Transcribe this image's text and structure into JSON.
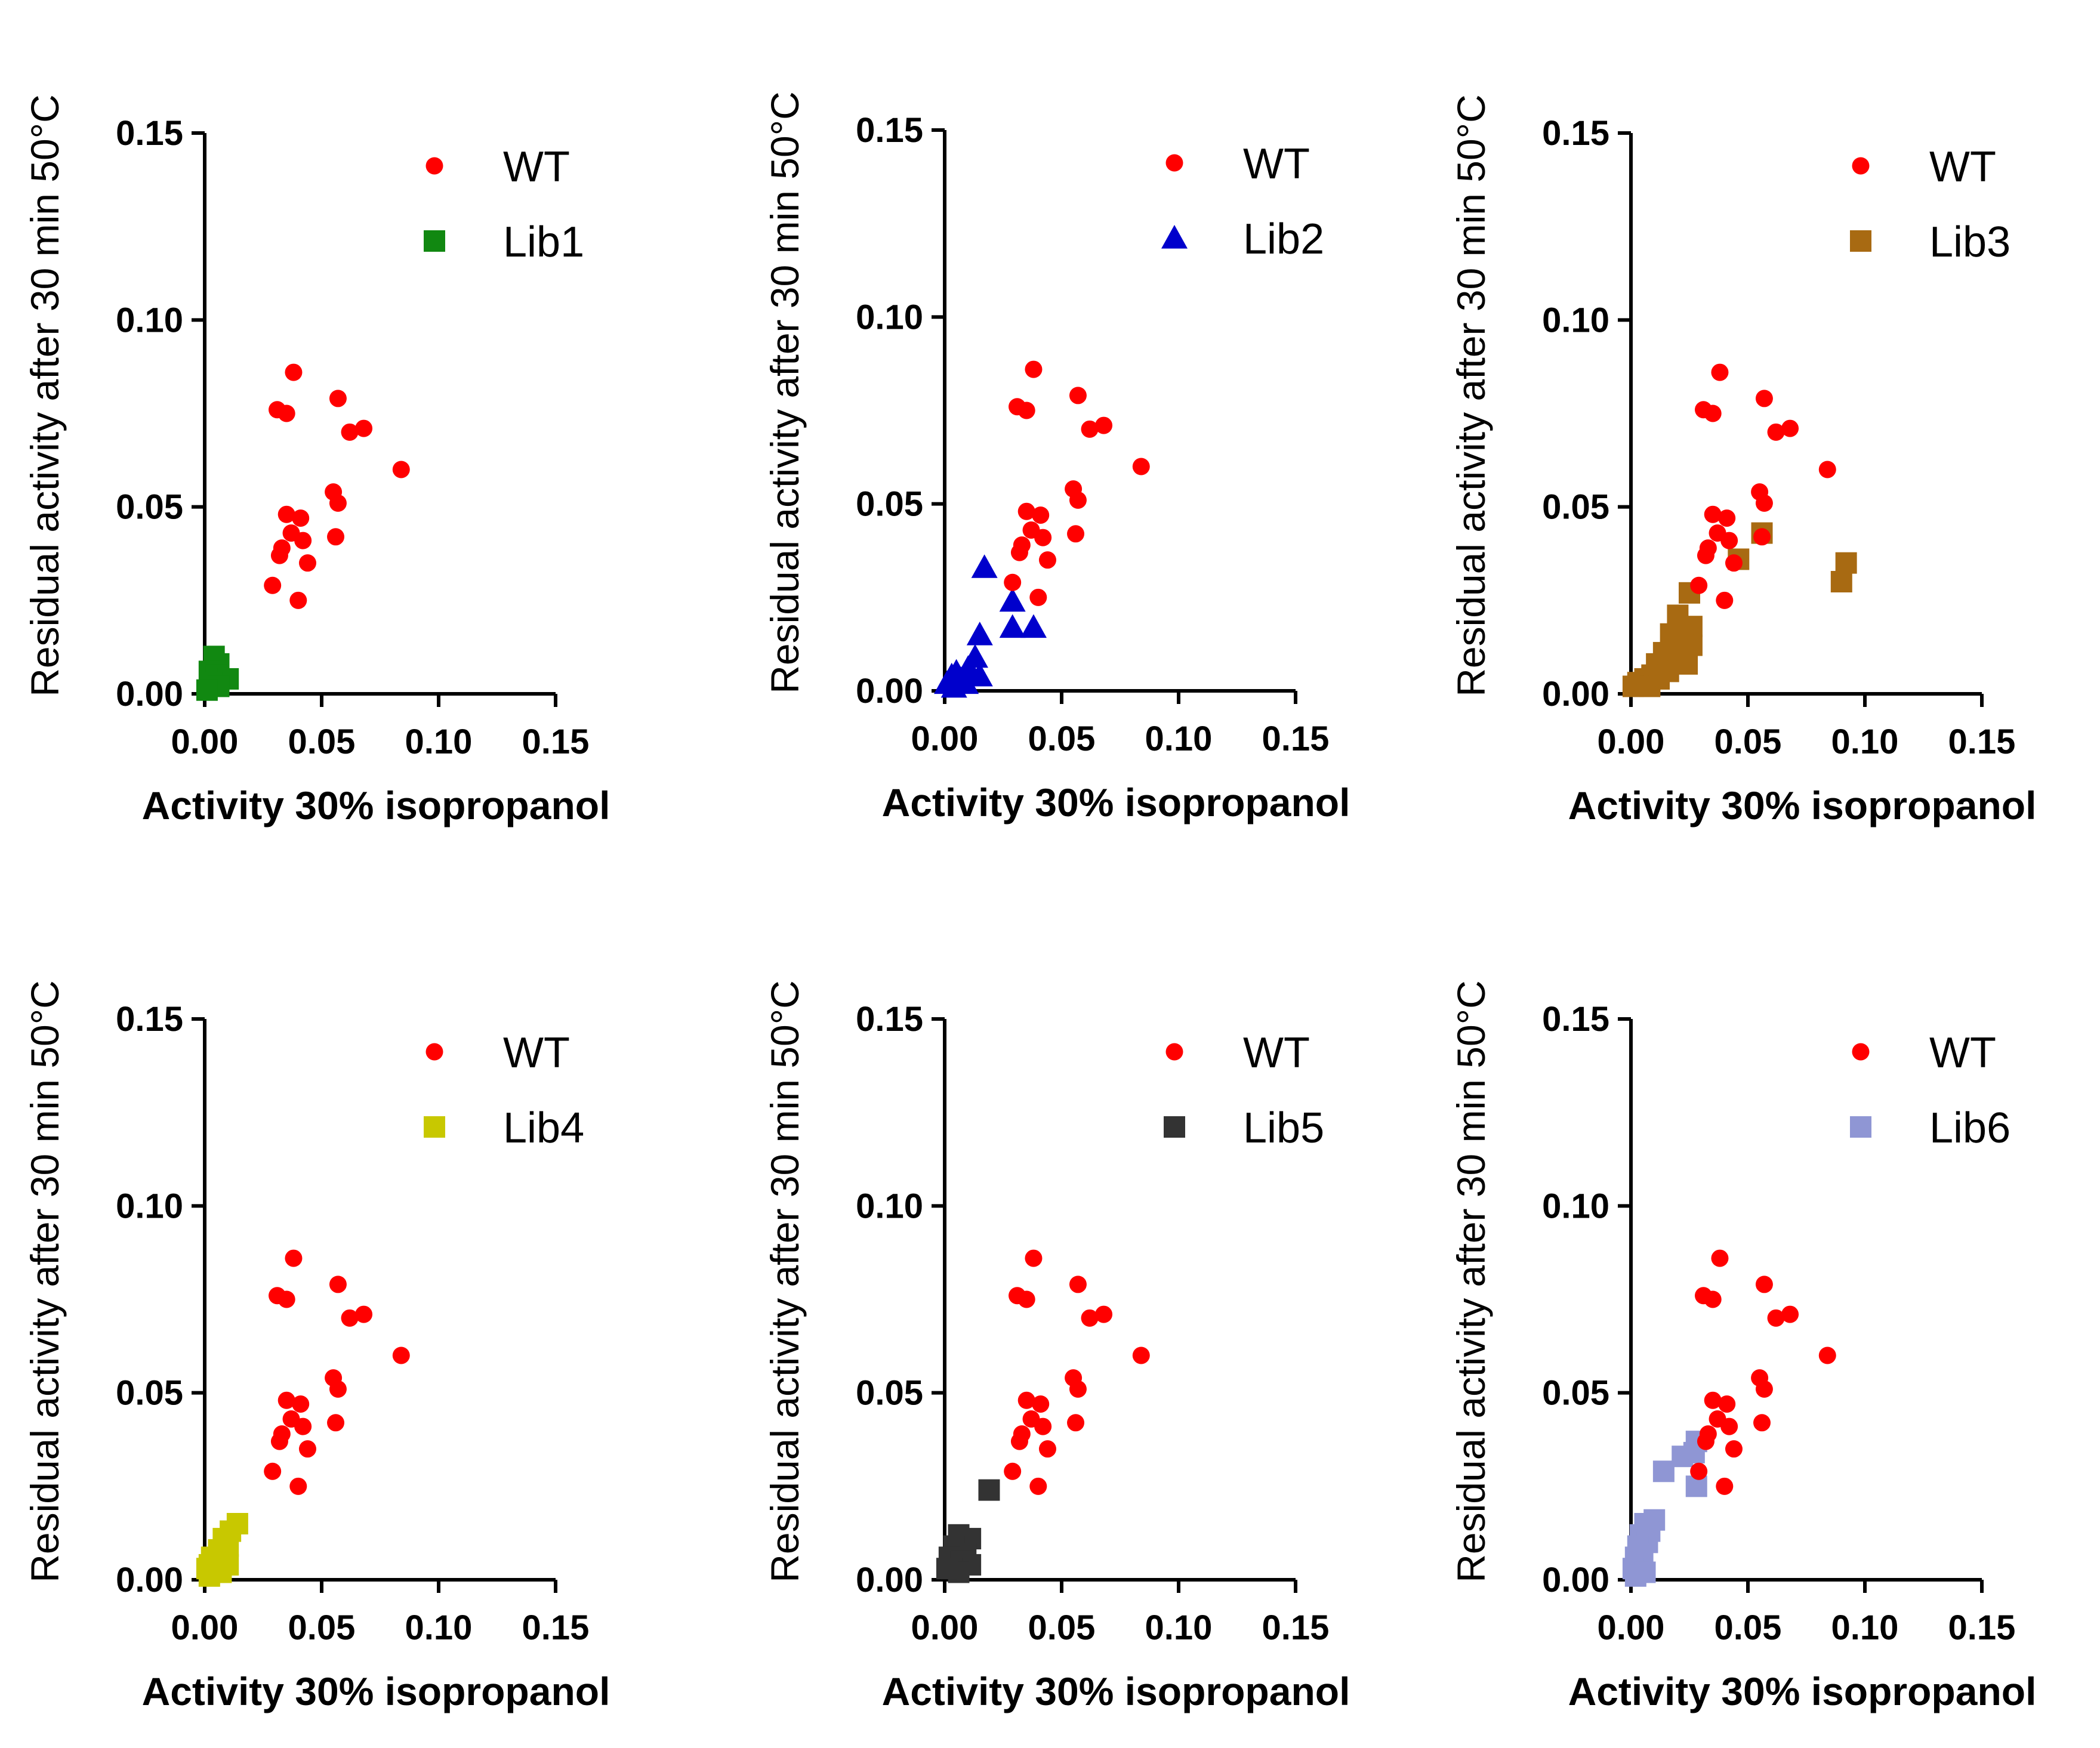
{
  "chart_data": [
    {
      "type": "scatter",
      "xlabel": "Activity 30% isopropanol",
      "ylabel": "Residual activity after 30 min 50°C",
      "xlim": [
        0,
        0.15
      ],
      "ylim": [
        0,
        0.15
      ],
      "xticks": [
        "0.00",
        "0.05",
        "0.10",
        "0.15"
      ],
      "yticks": [
        "0.00",
        "0.05",
        "0.10",
        "0.15"
      ],
      "legend_position": "top-right",
      "series": [
        {
          "name": "WT",
          "marker": "circle",
          "color": "#ff0000",
          "points": [
            [
              0.038,
              0.086
            ],
            [
              0.031,
              0.076
            ],
            [
              0.035,
              0.075
            ],
            [
              0.057,
              0.079
            ],
            [
              0.062,
              0.07
            ],
            [
              0.068,
              0.071
            ],
            [
              0.084,
              0.06
            ],
            [
              0.055,
              0.054
            ],
            [
              0.057,
              0.051
            ],
            [
              0.035,
              0.048
            ],
            [
              0.041,
              0.047
            ],
            [
              0.037,
              0.043
            ],
            [
              0.042,
              0.041
            ],
            [
              0.056,
              0.042
            ],
            [
              0.033,
              0.039
            ],
            [
              0.032,
              0.037
            ],
            [
              0.044,
              0.035
            ],
            [
              0.029,
              0.029
            ],
            [
              0.04,
              0.025
            ]
          ]
        },
        {
          "name": "Lib1",
          "marker": "square",
          "color": "#118811",
          "points": [
            [
              0.004,
              0.01
            ],
            [
              0.006,
              0.008
            ],
            [
              0.002,
              0.006
            ],
            [
              0.005,
              0.005
            ],
            [
              0.01,
              0.004
            ],
            [
              0.003,
              0.003
            ],
            [
              0.006,
              0.002
            ],
            [
              0.001,
              0.001
            ]
          ]
        }
      ]
    },
    {
      "type": "scatter",
      "xlabel": "Activity 30% isopropanol",
      "ylabel": "Residual activity after 30 min 50°C",
      "xlim": [
        0,
        0.15
      ],
      "ylim": [
        0,
        0.15
      ],
      "xticks": [
        "0.00",
        "0.05",
        "0.10",
        "0.15"
      ],
      "yticks": [
        "0.00",
        "0.05",
        "0.10",
        "0.15"
      ],
      "legend_position": "top-right",
      "series": [
        {
          "name": "WT",
          "marker": "circle",
          "color": "#ff0000",
          "points": [
            [
              0.038,
              0.086
            ],
            [
              0.031,
              0.076
            ],
            [
              0.035,
              0.075
            ],
            [
              0.057,
              0.079
            ],
            [
              0.062,
              0.07
            ],
            [
              0.068,
              0.071
            ],
            [
              0.084,
              0.06
            ],
            [
              0.055,
              0.054
            ],
            [
              0.057,
              0.051
            ],
            [
              0.035,
              0.048
            ],
            [
              0.041,
              0.047
            ],
            [
              0.037,
              0.043
            ],
            [
              0.042,
              0.041
            ],
            [
              0.056,
              0.042
            ],
            [
              0.033,
              0.039
            ],
            [
              0.032,
              0.037
            ],
            [
              0.044,
              0.035
            ],
            [
              0.029,
              0.029
            ],
            [
              0.04,
              0.025
            ]
          ]
        },
        {
          "name": "Lib2",
          "marker": "triangle",
          "color": "#0000cc",
          "points": [
            [
              0.017,
              0.033
            ],
            [
              0.029,
              0.024
            ],
            [
              0.029,
              0.017
            ],
            [
              0.038,
              0.017
            ],
            [
              0.015,
              0.015
            ],
            [
              0.013,
              0.009
            ],
            [
              0.01,
              0.006
            ],
            [
              0.015,
              0.004
            ],
            [
              0.005,
              0.005
            ],
            [
              0.007,
              0.003
            ],
            [
              0.003,
              0.004
            ],
            [
              0.001,
              0.002
            ],
            [
              0.004,
              0.001
            ],
            [
              0.009,
              0.002
            ],
            [
              0.012,
              0.004
            ]
          ]
        }
      ]
    },
    {
      "type": "scatter",
      "xlabel": "Activity 30% isopropanol",
      "ylabel": "Residual activity after 30 min 50°C",
      "xlim": [
        0,
        0.15
      ],
      "ylim": [
        0,
        0.15
      ],
      "xticks": [
        "0.00",
        "0.05",
        "0.10",
        "0.15"
      ],
      "yticks": [
        "0.00",
        "0.05",
        "0.10",
        "0.15"
      ],
      "legend_position": "top-right",
      "series": [
        {
          "name": "WT",
          "marker": "circle",
          "color": "#ff0000",
          "points": [
            [
              0.038,
              0.086
            ],
            [
              0.031,
              0.076
            ],
            [
              0.035,
              0.075
            ],
            [
              0.057,
              0.079
            ],
            [
              0.062,
              0.07
            ],
            [
              0.068,
              0.071
            ],
            [
              0.084,
              0.06
            ],
            [
              0.055,
              0.054
            ],
            [
              0.057,
              0.051
            ],
            [
              0.035,
              0.048
            ],
            [
              0.041,
              0.047
            ],
            [
              0.037,
              0.043
            ],
            [
              0.042,
              0.041
            ],
            [
              0.056,
              0.042
            ],
            [
              0.033,
              0.039
            ],
            [
              0.032,
              0.037
            ],
            [
              0.044,
              0.035
            ],
            [
              0.029,
              0.029
            ],
            [
              0.04,
              0.025
            ]
          ]
        },
        {
          "name": "Lib3",
          "marker": "square",
          "color": "#a86a12",
          "points": [
            [
              0.056,
              0.043
            ],
            [
              0.046,
              0.036
            ],
            [
              0.092,
              0.035
            ],
            [
              0.09,
              0.03
            ],
            [
              0.025,
              0.027
            ],
            [
              0.02,
              0.021
            ],
            [
              0.026,
              0.018
            ],
            [
              0.017,
              0.016
            ],
            [
              0.022,
              0.014
            ],
            [
              0.026,
              0.013
            ],
            [
              0.014,
              0.011
            ],
            [
              0.02,
              0.01
            ],
            [
              0.024,
              0.008
            ],
            [
              0.011,
              0.008
            ],
            [
              0.016,
              0.006
            ],
            [
              0.009,
              0.005
            ],
            [
              0.012,
              0.004
            ],
            [
              0.006,
              0.004
            ],
            [
              0.003,
              0.003
            ],
            [
              0.008,
              0.002
            ],
            [
              0.001,
              0.002
            ]
          ]
        }
      ]
    },
    {
      "type": "scatter",
      "xlabel": "Activity 30% isopropanol",
      "ylabel": "Residual activity after 30 min 50°C",
      "xlim": [
        0,
        0.15
      ],
      "ylim": [
        0,
        0.15
      ],
      "xticks": [
        "0.00",
        "0.05",
        "0.10",
        "0.15"
      ],
      "yticks": [
        "0.00",
        "0.05",
        "0.10",
        "0.15"
      ],
      "legend_position": "top-right",
      "series": [
        {
          "name": "WT",
          "marker": "circle",
          "color": "#ff0000",
          "points": [
            [
              0.038,
              0.086
            ],
            [
              0.031,
              0.076
            ],
            [
              0.035,
              0.075
            ],
            [
              0.057,
              0.079
            ],
            [
              0.062,
              0.07
            ],
            [
              0.068,
              0.071
            ],
            [
              0.084,
              0.06
            ],
            [
              0.055,
              0.054
            ],
            [
              0.057,
              0.051
            ],
            [
              0.035,
              0.048
            ],
            [
              0.041,
              0.047
            ],
            [
              0.037,
              0.043
            ],
            [
              0.042,
              0.041
            ],
            [
              0.056,
              0.042
            ],
            [
              0.033,
              0.039
            ],
            [
              0.032,
              0.037
            ],
            [
              0.044,
              0.035
            ],
            [
              0.029,
              0.029
            ],
            [
              0.04,
              0.025
            ]
          ]
        },
        {
          "name": "Lib4",
          "marker": "square",
          "color": "#c8c800",
          "points": [
            [
              0.014,
              0.015
            ],
            [
              0.011,
              0.013
            ],
            [
              0.008,
              0.011
            ],
            [
              0.01,
              0.009
            ],
            [
              0.006,
              0.008
            ],
            [
              0.003,
              0.006
            ],
            [
              0.008,
              0.006
            ],
            [
              0.005,
              0.005
            ],
            [
              0.002,
              0.004
            ],
            [
              0.01,
              0.004
            ],
            [
              0.001,
              0.003
            ],
            [
              0.004,
              0.002
            ],
            [
              0.007,
              0.002
            ],
            [
              0.002,
              0.001
            ]
          ]
        }
      ]
    },
    {
      "type": "scatter",
      "xlabel": "Activity 30% isopropanol",
      "ylabel": "Residual activity after 30 min 50°C",
      "xlim": [
        0,
        0.15
      ],
      "ylim": [
        0,
        0.15
      ],
      "xticks": [
        "0.00",
        "0.05",
        "0.10",
        "0.15"
      ],
      "yticks": [
        "0.00",
        "0.05",
        "0.10",
        "0.15"
      ],
      "legend_position": "top-right",
      "series": [
        {
          "name": "WT",
          "marker": "circle",
          "color": "#ff0000",
          "points": [
            [
              0.038,
              0.086
            ],
            [
              0.031,
              0.076
            ],
            [
              0.035,
              0.075
            ],
            [
              0.057,
              0.079
            ],
            [
              0.062,
              0.07
            ],
            [
              0.068,
              0.071
            ],
            [
              0.084,
              0.06
            ],
            [
              0.055,
              0.054
            ],
            [
              0.057,
              0.051
            ],
            [
              0.035,
              0.048
            ],
            [
              0.041,
              0.047
            ],
            [
              0.037,
              0.043
            ],
            [
              0.042,
              0.041
            ],
            [
              0.056,
              0.042
            ],
            [
              0.033,
              0.039
            ],
            [
              0.032,
              0.037
            ],
            [
              0.044,
              0.035
            ],
            [
              0.029,
              0.029
            ],
            [
              0.04,
              0.025
            ]
          ]
        },
        {
          "name": "Lib5",
          "marker": "square",
          "color": "#333333",
          "points": [
            [
              0.019,
              0.024
            ],
            [
              0.006,
              0.012
            ],
            [
              0.011,
              0.011
            ],
            [
              0.004,
              0.009
            ],
            [
              0.009,
              0.007
            ],
            [
              0.002,
              0.006
            ],
            [
              0.007,
              0.005
            ],
            [
              0.011,
              0.004
            ],
            [
              0.003,
              0.003
            ],
            [
              0.006,
              0.002
            ],
            [
              0.001,
              0.003
            ]
          ]
        }
      ]
    },
    {
      "type": "scatter",
      "xlabel": "Activity 30% isopropanol",
      "ylabel": "Residual activity after 30 min 50°C",
      "xlim": [
        0,
        0.15
      ],
      "ylim": [
        0,
        0.15
      ],
      "xticks": [
        "0.00",
        "0.05",
        "0.10",
        "0.15"
      ],
      "yticks": [
        "0.00",
        "0.05",
        "0.10",
        "0.15"
      ],
      "legend_position": "top-right",
      "series": [
        {
          "name": "WT",
          "marker": "circle",
          "color": "#ff0000",
          "points": [
            [
              0.038,
              0.086
            ],
            [
              0.031,
              0.076
            ],
            [
              0.035,
              0.075
            ],
            [
              0.057,
              0.079
            ],
            [
              0.062,
              0.07
            ],
            [
              0.068,
              0.071
            ],
            [
              0.084,
              0.06
            ],
            [
              0.055,
              0.054
            ],
            [
              0.057,
              0.051
            ],
            [
              0.035,
              0.048
            ],
            [
              0.041,
              0.047
            ],
            [
              0.037,
              0.043
            ],
            [
              0.042,
              0.041
            ],
            [
              0.056,
              0.042
            ],
            [
              0.033,
              0.039
            ],
            [
              0.032,
              0.037
            ],
            [
              0.044,
              0.035
            ],
            [
              0.029,
              0.029
            ],
            [
              0.04,
              0.025
            ]
          ]
        },
        {
          "name": "Lib6",
          "marker": "square",
          "color": "#8f96d4",
          "points": [
            [
              0.028,
              0.037
            ],
            [
              0.027,
              0.034
            ],
            [
              0.022,
              0.033
            ],
            [
              0.014,
              0.029
            ],
            [
              0.028,
              0.025
            ],
            [
              0.01,
              0.016
            ],
            [
              0.006,
              0.015
            ],
            [
              0.008,
              0.013
            ],
            [
              0.004,
              0.012
            ],
            [
              0.007,
              0.01
            ],
            [
              0.003,
              0.009
            ],
            [
              0.005,
              0.007
            ],
            [
              0.002,
              0.006
            ],
            [
              0.004,
              0.004
            ],
            [
              0.001,
              0.003
            ],
            [
              0.003,
              0.002
            ],
            [
              0.006,
              0.002
            ],
            [
              0.002,
              0.001
            ]
          ]
        }
      ]
    }
  ]
}
